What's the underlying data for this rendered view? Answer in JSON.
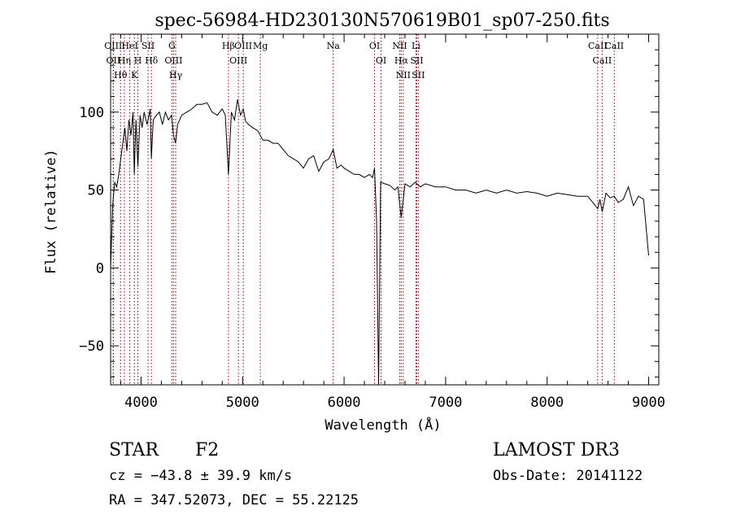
{
  "header": {
    "title": "spec-56984-HD230130N570619B01_sp07-250.fits"
  },
  "chart_data": {
    "type": "line",
    "title": "spec-56984-HD230130N570619B01_sp07-250.fits",
    "xlabel": "Wavelength (Å)",
    "ylabel": "Flux (relative)",
    "xlim": [
      3700,
      9100
    ],
    "ylim": [
      -75,
      150
    ],
    "xticks": [
      4000,
      5000,
      6000,
      7000,
      8000,
      9000
    ],
    "yticks": [
      -50,
      0,
      50,
      100
    ],
    "grid": false,
    "series": [
      {
        "x": [
          3700,
          3720,
          3740,
          3760,
          3780,
          3800,
          3820,
          3840,
          3860,
          3880,
          3900,
          3920,
          3933,
          3950,
          3968,
          3990,
          4010,
          4030,
          4060,
          4090,
          4101,
          4120,
          4150,
          4180,
          4210,
          4240,
          4270,
          4300,
          4320,
          4340,
          4360,
          4400,
          4450,
          4500,
          4550,
          4600,
          4650,
          4700,
          4750,
          4800,
          4830,
          4861,
          4890,
          4920,
          4950,
          4980,
          5007,
          5030,
          5060,
          5100,
          5150,
          5200,
          5250,
          5300,
          5350,
          5400,
          5450,
          5500,
          5550,
          5600,
          5650,
          5700,
          5750,
          5800,
          5850,
          5893,
          5930,
          5970,
          6000,
          6050,
          6100,
          6150,
          6200,
          6250,
          6280,
          6300,
          6320,
          6340,
          6360,
          6400,
          6450,
          6500,
          6530,
          6563,
          6600,
          6650,
          6700,
          6750,
          6800,
          6900,
          7000,
          7100,
          7200,
          7300,
          7400,
          7500,
          7600,
          7700,
          7800,
          7900,
          8000,
          8100,
          8200,
          8300,
          8400,
          8450,
          8498,
          8520,
          8542,
          8580,
          8620,
          8662,
          8700,
          8750,
          8800,
          8850,
          8900,
          8950,
          9000
        ],
        "y": [
          0,
          40,
          55,
          52,
          60,
          70,
          80,
          90,
          75,
          95,
          85,
          100,
          60,
          95,
          65,
          98,
          90,
          100,
          92,
          102,
          70,
          95,
          98,
          100,
          92,
          100,
          95,
          98,
          85,
          80,
          92,
          98,
          100,
          102,
          105,
          105,
          106,
          100,
          98,
          102,
          98,
          60,
          100,
          95,
          108,
          98,
          102,
          94,
          92,
          90,
          88,
          82,
          82,
          80,
          80,
          76,
          72,
          70,
          68,
          64,
          70,
          72,
          62,
          68,
          70,
          76,
          64,
          66,
          64,
          62,
          60,
          60,
          58,
          60,
          58,
          64,
          30,
          -75,
          55,
          54,
          53,
          50,
          52,
          32,
          54,
          52,
          55,
          52,
          54,
          52,
          52,
          50,
          50,
          48,
          50,
          48,
          50,
          48,
          49,
          48,
          46,
          48,
          47,
          46,
          46,
          42,
          38,
          44,
          36,
          48,
          45,
          46,
          42,
          44,
          52,
          40,
          46,
          44,
          8
        ]
      }
    ],
    "spectral_lines": [
      {
        "name": "Hθ",
        "wavelength": 3798
      },
      {
        "name": "OII",
        "wavelength": 3727
      },
      {
        "name": "OIII",
        "wavelength": 3726
      },
      {
        "name": "HeI",
        "wavelength": 3889
      },
      {
        "name": "Hη",
        "wavelength": 3835
      },
      {
        "name": "K",
        "wavelength": 3934
      },
      {
        "name": "H",
        "wavelength": 3969
      },
      {
        "name": "Hδ",
        "wavelength": 4102
      },
      {
        "name": "SII",
        "wavelength": 4069
      },
      {
        "name": "OIII",
        "wavelength": 4320
      },
      {
        "name": "Hγ",
        "wavelength": 4341
      },
      {
        "name": "G",
        "wavelength": 4304
      },
      {
        "name": "Hβ",
        "wavelength": 4861
      },
      {
        "name": "OIII",
        "wavelength": 4959
      },
      {
        "name": "OIII",
        "wavelength": 5007
      },
      {
        "name": "Mg",
        "wavelength": 5175
      },
      {
        "name": "Na",
        "wavelength": 5893
      },
      {
        "name": "OI",
        "wavelength": 6300
      },
      {
        "name": "OI",
        "wavelength": 6364
      },
      {
        "name": "Hα",
        "wavelength": 6563
      },
      {
        "name": "NII",
        "wavelength": 6548
      },
      {
        "name": "NII",
        "wavelength": 6583
      },
      {
        "name": "SII",
        "wavelength": 6716
      },
      {
        "name": "SII",
        "wavelength": 6731
      },
      {
        "name": "Li",
        "wavelength": 6708
      },
      {
        "name": "CaII",
        "wavelength": 8498
      },
      {
        "name": "CaII",
        "wavelength": 8542
      },
      {
        "name": "CaII",
        "wavelength": 8662
      }
    ]
  },
  "info": {
    "object_type": "STAR",
    "subclass": "F2",
    "survey": "LAMOST DR3",
    "cz": "cz = −43.8 ± 39.9 km/s",
    "obs_date": "Obs-Date: 20141122",
    "radec": "RA = 347.52073, DEC =  55.22125"
  },
  "colors": {
    "line": "#000000",
    "marker": "#8b0000"
  }
}
